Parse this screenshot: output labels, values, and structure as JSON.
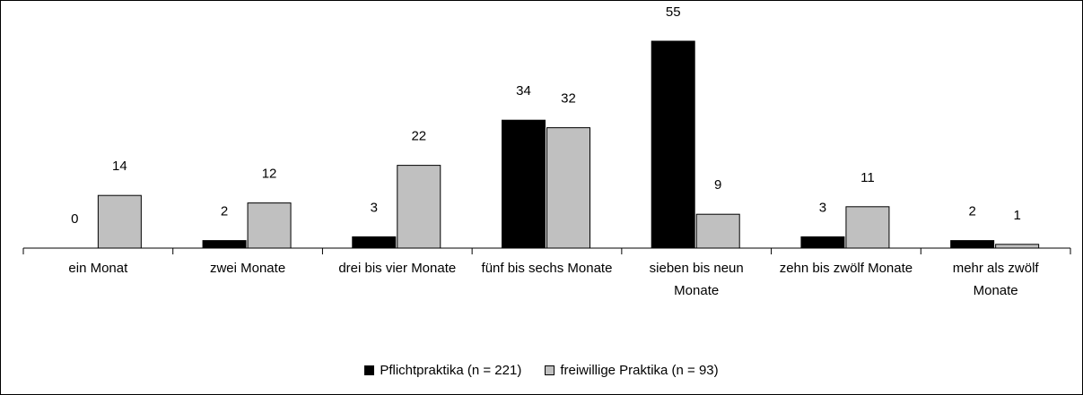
{
  "chart_data": {
    "type": "bar",
    "categories": [
      "ein Monat",
      "zwei Monate",
      "drei bis vier Monate",
      "fünf bis sechs Monate",
      "sieben bis neun Monate",
      "zehn bis zwölf Monate",
      "mehr als zwölf Monate"
    ],
    "series": [
      {
        "name": "Pflichtpraktika (n = 221)",
        "color": "#000000",
        "values": [
          0,
          2,
          3,
          34,
          55,
          3,
          2
        ]
      },
      {
        "name": "freiwillige Praktika (n = 93)",
        "color": "#c0c0c0",
        "values": [
          14,
          12,
          22,
          32,
          9,
          11,
          1
        ]
      }
    ],
    "legend": "bottom"
  }
}
